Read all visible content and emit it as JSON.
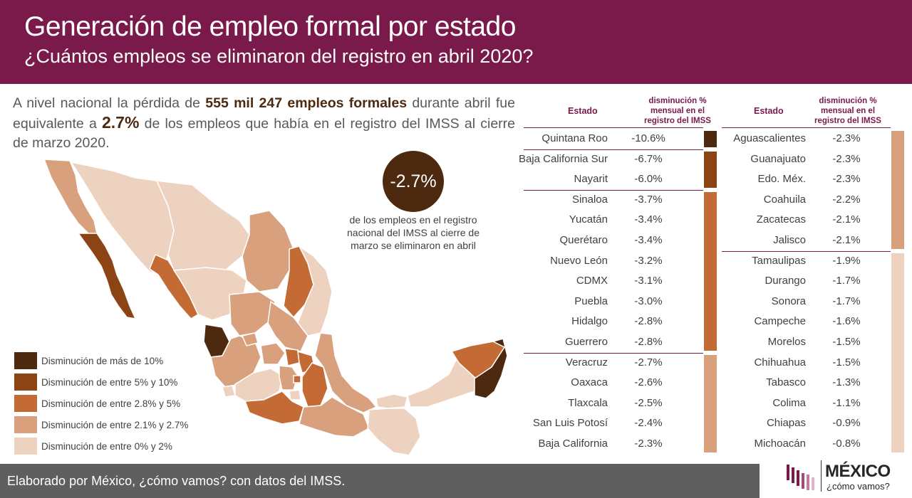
{
  "header": {
    "title": "Generación de empleo formal por estado",
    "subtitle": "¿Cuántos empleos se eliminaron del registro en abril 2020?"
  },
  "intro": {
    "part1": "A nivel nacional  la pérdida de ",
    "highlight": "555 mil 247 empleos formales",
    "part2": " durante abril fue equivalente a ",
    "pct": "2.7%",
    "part3": " de los empleos que había en el registro del IMSS al cierre de marzo 2020."
  },
  "badge": {
    "value": "-2.7%",
    "caption": "de los empleos en el registro nacional del IMSS al cierre de marzo se eliminaron en abril"
  },
  "legend": [
    {
      "label": "Disminución de más de 10%",
      "color": "#4d2a0f"
    },
    {
      "label": "Disminución de entre 5% y 10%",
      "color": "#8c4414"
    },
    {
      "label": "Disminución de entre 2.8% y 5%",
      "color": "#c46a35"
    },
    {
      "label": "Disminución de entre 2.1% y 2.7%",
      "color": "#d9a07d"
    },
    {
      "label": "Disminución de entre 0% y 2%",
      "color": "#edd2c0"
    }
  ],
  "table_headers": {
    "estado": "Estado",
    "pct": "disminución % mensual en el registro del IMSS"
  },
  "chart_data": {
    "type": "table",
    "columns": [
      "Estado",
      "disminución % mensual en el registro del IMSS"
    ],
    "rows": [
      {
        "estado": "Quintana Roo",
        "valor": "-10.6%",
        "group": 0
      },
      {
        "estado": "Baja California Sur",
        "valor": "-6.7%",
        "group": 1
      },
      {
        "estado": "Nayarit",
        "valor": "-6.0%",
        "group": 1
      },
      {
        "estado": "Sinaloa",
        "valor": "-3.7%",
        "group": 2
      },
      {
        "estado": "Yucatán",
        "valor": "-3.4%",
        "group": 2
      },
      {
        "estado": "Querétaro",
        "valor": "-3.4%",
        "group": 2
      },
      {
        "estado": "Nuevo León",
        "valor": "-3.2%",
        "group": 2
      },
      {
        "estado": "CDMX",
        "valor": "-3.1%",
        "group": 2
      },
      {
        "estado": "Puebla",
        "valor": "-3.0%",
        "group": 2
      },
      {
        "estado": "Hidalgo",
        "valor": "-2.8%",
        "group": 2
      },
      {
        "estado": "Guerrero",
        "valor": "-2.8%",
        "group": 2
      },
      {
        "estado": "Veracruz",
        "valor": "-2.7%",
        "group": 3
      },
      {
        "estado": "Oaxaca",
        "valor": "-2.6%",
        "group": 3
      },
      {
        "estado": "Tlaxcala",
        "valor": "-2.5%",
        "group": 3
      },
      {
        "estado": "San Luis Potosí",
        "valor": "-2.4%",
        "group": 3
      },
      {
        "estado": "Baja California",
        "valor": "-2.3%",
        "group": 3
      },
      {
        "estado": "Aguascalientes",
        "valor": "-2.3%",
        "group": 3
      },
      {
        "estado": "Guanajuato",
        "valor": "-2.3%",
        "group": 3
      },
      {
        "estado": "Edo. Méx.",
        "valor": "-2.3%",
        "group": 3
      },
      {
        "estado": "Coahuila",
        "valor": "-2.2%",
        "group": 3
      },
      {
        "estado": "Zacatecas",
        "valor": "-2.1%",
        "group": 3
      },
      {
        "estado": "Jalisco",
        "valor": "-2.1%",
        "group": 3
      },
      {
        "estado": "Tamaulipas",
        "valor": "-1.9%",
        "group": 4
      },
      {
        "estado": "Durango",
        "valor": "-1.7%",
        "group": 4
      },
      {
        "estado": "Sonora",
        "valor": "-1.7%",
        "group": 4
      },
      {
        "estado": "Campeche",
        "valor": "-1.6%",
        "group": 4
      },
      {
        "estado": "Morelos",
        "valor": "-1.5%",
        "group": 4
      },
      {
        "estado": "Chihuahua",
        "valor": "-1.5%",
        "group": 4
      },
      {
        "estado": "Tabasco",
        "valor": "-1.3%",
        "group": 4
      },
      {
        "estado": "Colima",
        "valor": "-1.1%",
        "group": 4
      },
      {
        "estado": "Chiapas",
        "valor": "-0.9%",
        "group": 4
      },
      {
        "estado": "Michoacán",
        "valor": "-0.8%",
        "group": 4
      }
    ]
  },
  "footer": {
    "text": "Elaborado por México, ¿cómo vamos? con datos del IMSS."
  },
  "logo": {
    "name": "MÉXICO",
    "tagline": "¿cómo vamos?"
  }
}
